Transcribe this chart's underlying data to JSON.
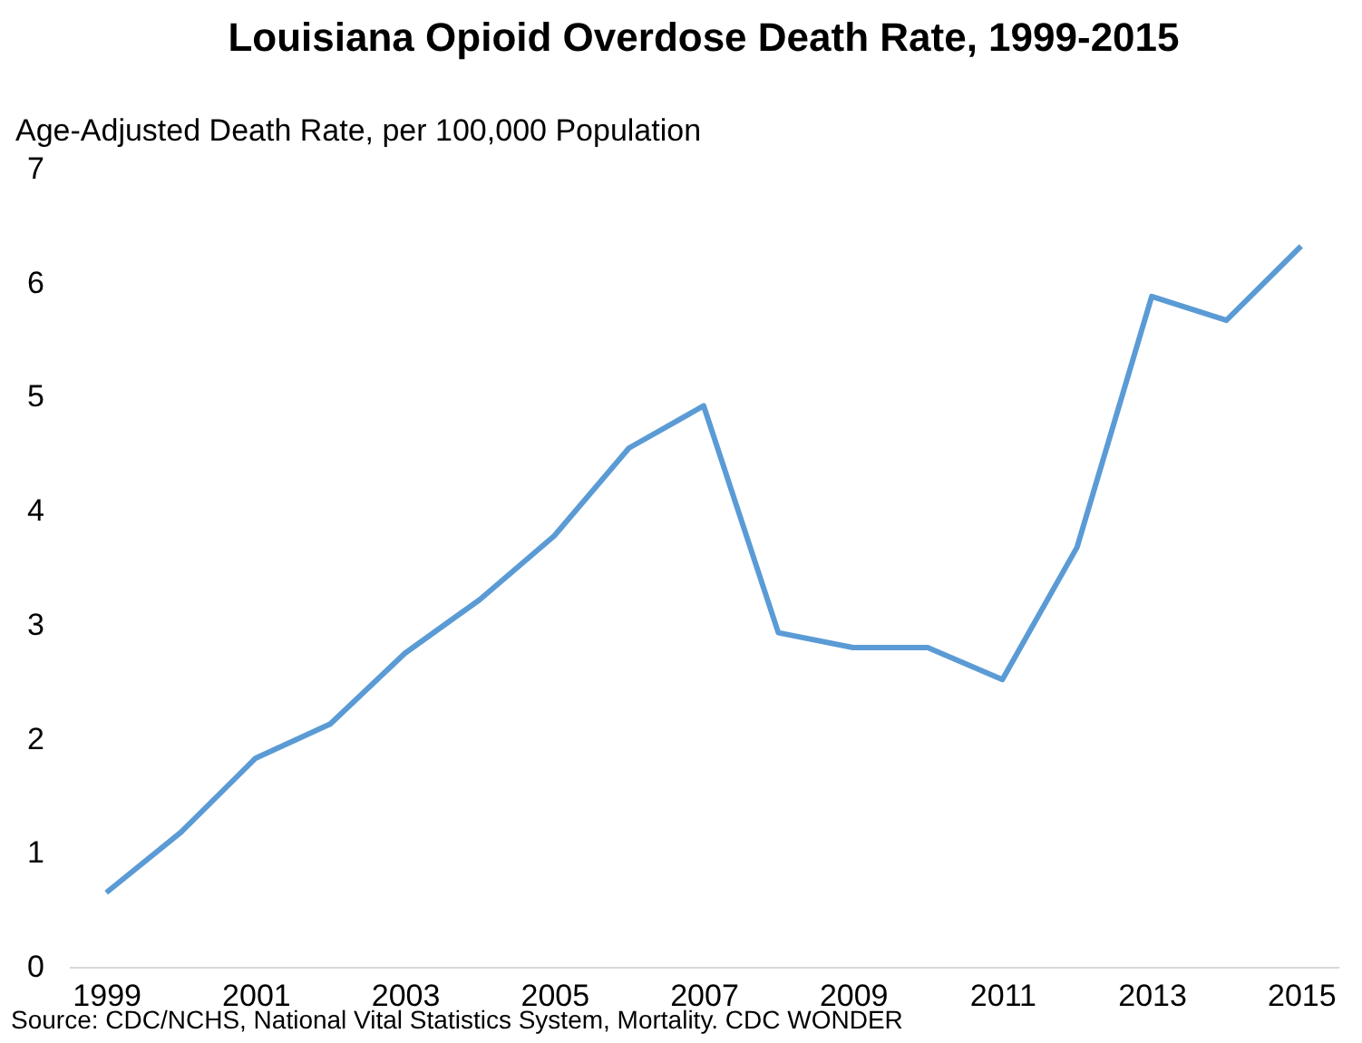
{
  "chart_data": {
    "type": "line",
    "title": "Louisiana Opioid Overdose Death Rate, 1999-2015",
    "ylabel": "Age-Adjusted Death Rate, per 100,000 Population",
    "categories": [
      "1999",
      null,
      "2001",
      null,
      "2003",
      null,
      "2005",
      null,
      "2007",
      null,
      "2009",
      null,
      "2011",
      null,
      "2013",
      null,
      "2015"
    ],
    "series": [
      {
        "color": "#5b9bd5",
        "values": [
          0.65,
          1.18,
          1.83,
          2.13,
          2.75,
          3.22,
          3.78,
          4.55,
          4.92,
          2.93,
          2.8,
          2.8,
          2.52,
          3.68,
          5.88,
          5.67,
          6.32
        ]
      }
    ],
    "ylim": [
      0,
      7
    ],
    "yticks": [
      0,
      1,
      2,
      3,
      4,
      5,
      6,
      7
    ],
    "grid": false,
    "legend": false,
    "annotations": [
      "Source:  CDC/NCHS, National Vital Statistics System, Mortality. CDC WONDER"
    ]
  }
}
